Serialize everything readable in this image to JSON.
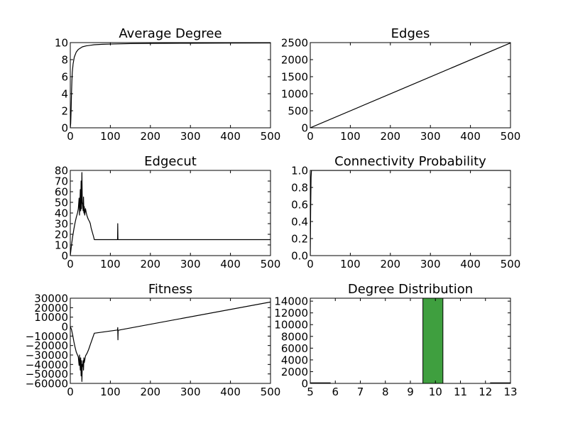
{
  "chart_data": [
    {
      "type": "line",
      "title": "Average Degree",
      "xlabel": "",
      "ylabel": "",
      "xlim": [
        0,
        500
      ],
      "ylim": [
        0,
        10
      ],
      "xticks": [
        0,
        100,
        200,
        300,
        400,
        500
      ],
      "yticks": [
        0,
        2,
        4,
        6,
        8,
        10
      ],
      "series": [
        {
          "name": "average_degree",
          "x": [
            0,
            1,
            2,
            3,
            4,
            5,
            7,
            10,
            15,
            20,
            30,
            40,
            60,
            80,
            100,
            150,
            200,
            300,
            400,
            500
          ],
          "y": [
            0,
            0.5,
            2.0,
            4.0,
            5.5,
            6.5,
            7.5,
            8.3,
            8.9,
            9.2,
            9.5,
            9.62,
            9.75,
            9.8,
            9.83,
            9.88,
            9.9,
            9.93,
            9.95,
            9.96
          ]
        }
      ]
    },
    {
      "type": "line",
      "title": "Edges",
      "xlabel": "",
      "ylabel": "",
      "xlim": [
        0,
        500
      ],
      "ylim": [
        0,
        2500
      ],
      "xticks": [
        0,
        100,
        200,
        300,
        400,
        500
      ],
      "yticks": [
        0,
        500,
        1000,
        1500,
        2000,
        2500
      ],
      "series": [
        {
          "name": "edges",
          "x": [
            0,
            500
          ],
          "y": [
            0,
            2490
          ]
        }
      ]
    },
    {
      "type": "line",
      "title": "Edgecut",
      "xlabel": "",
      "ylabel": "",
      "xlim": [
        0,
        500
      ],
      "ylim": [
        0,
        80
      ],
      "xticks": [
        0,
        100,
        200,
        300,
        400,
        500
      ],
      "yticks": [
        0,
        10,
        20,
        30,
        40,
        50,
        60,
        70,
        80
      ],
      "series": [
        {
          "name": "edgecut",
          "x": [
            0,
            3,
            6,
            9,
            12,
            15,
            18,
            20,
            22,
            23,
            24,
            25,
            26,
            27,
            28,
            29,
            30,
            31,
            32,
            33,
            34,
            35,
            36,
            38,
            40,
            42,
            45,
            48,
            50,
            52,
            55,
            58,
            60,
            118,
            118.5,
            119,
            119.5,
            125,
            500
          ],
          "y": [
            0,
            10,
            18,
            25,
            31,
            36,
            40,
            44,
            54,
            38,
            48,
            62,
            42,
            70,
            44,
            78,
            50,
            48,
            42,
            55,
            40,
            46,
            38,
            44,
            40,
            37,
            34,
            32,
            30,
            26,
            22,
            18,
            15,
            15,
            30,
            15,
            15,
            15,
            15
          ]
        }
      ]
    },
    {
      "type": "line",
      "title": "Connectivity Probability",
      "xlabel": "",
      "ylabel": "",
      "xlim": [
        0,
        500
      ],
      "ylim": [
        0,
        1.0
      ],
      "xticks": [
        0,
        100,
        200,
        300,
        400,
        500
      ],
      "yticks": [
        0.0,
        0.2,
        0.4,
        0.6,
        0.8,
        1.0
      ],
      "series": [
        {
          "name": "connectivity_probability",
          "x": [
            0,
            1,
            2,
            3,
            500
          ],
          "y": [
            0,
            0.55,
            0.92,
            1.0,
            1.0
          ]
        }
      ]
    },
    {
      "type": "line",
      "title": "Fitness",
      "xlabel": "",
      "ylabel": "",
      "xlim": [
        0,
        500
      ],
      "ylim": [
        -60000,
        30000
      ],
      "xticks": [
        0,
        100,
        200,
        300,
        400,
        500
      ],
      "yticks": [
        -60000,
        -50000,
        -40000,
        -30000,
        -20000,
        -10000,
        0,
        10000,
        20000,
        30000
      ],
      "series": [
        {
          "name": "fitness",
          "x": [
            0,
            3,
            6,
            9,
            12,
            15,
            18,
            20,
            22,
            23,
            24,
            25,
            26,
            27,
            28,
            29,
            30,
            31,
            32,
            33,
            34,
            35,
            38,
            42,
            46,
            50,
            55,
            60,
            118,
            118.5,
            119,
            119.5,
            125,
            500
          ],
          "y": [
            0,
            -3000,
            -9000,
            -16000,
            -22000,
            -27000,
            -30000,
            -32000,
            -41000,
            -30000,
            -38000,
            -46000,
            -33000,
            -52000,
            -36000,
            -58000,
            -40000,
            -42000,
            -36000,
            -46000,
            -33000,
            -38000,
            -31000,
            -28000,
            -24000,
            -19000,
            -13000,
            -7000,
            -3600,
            -1000,
            -14000,
            -4000,
            -3400,
            26000
          ]
        }
      ]
    },
    {
      "type": "bar",
      "title": "Degree Distribution",
      "xlabel": "",
      "ylabel": "",
      "xlim": [
        5,
        13
      ],
      "ylim": [
        0,
        14500
      ],
      "xticks": [
        5,
        6,
        7,
        8,
        9,
        10,
        11,
        12,
        13
      ],
      "yticks": [
        0,
        2000,
        4000,
        6000,
        8000,
        10000,
        12000,
        14000
      ],
      "bar_color": "#3f9f3f",
      "bars": [
        {
          "left": 5.0,
          "width": 0.8,
          "value": 100
        },
        {
          "left": 9.5,
          "width": 0.8,
          "value": 14500
        },
        {
          "left": 12.2,
          "width": 0.8,
          "value": 100
        }
      ]
    }
  ]
}
